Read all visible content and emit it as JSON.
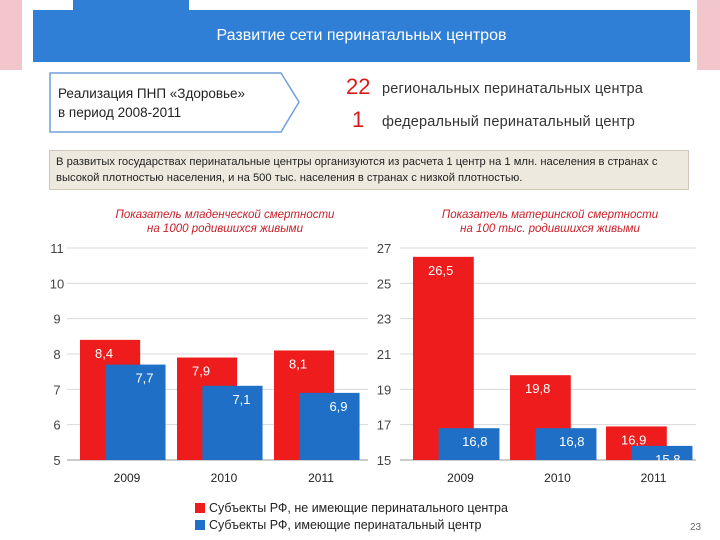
{
  "header": {
    "title": "Развитие сети перинатальных центров"
  },
  "callout": {
    "line1": "Реализация ПНП «Здоровье»",
    "line2": "в период 2008-2011"
  },
  "stats": [
    {
      "number": "22",
      "text": "региональных перинатальных центра"
    },
    {
      "number": "1",
      "text": "федеральный перинатальный центр"
    }
  ],
  "note": {
    "text": "В развитых государствах перинатальные центры организуются из расчета 1 центр на 1 млн. населения в странах с высокой плотностью населения, и на 500 тыс. населения в странах с низкой плотностью."
  },
  "colors": {
    "accent": "#2f7fd6",
    "red": "#ee1c1c",
    "blue": "#1f6fc6"
  },
  "legend": {
    "red_label": "Субъекты РФ, не имеющие перинатального центра",
    "blue_label": "Субъекты РФ, имеющие перинатальный центр"
  },
  "page_number": "23",
  "chart_data": [
    {
      "type": "bar",
      "title_line1": "Показатель младенческой смертности",
      "title_line2": "на 1000 родившихся живыми",
      "categories": [
        "2009",
        "2010",
        "2011"
      ],
      "series": [
        {
          "name": "Субъекты РФ, не имеющие перинатального центра",
          "values": [
            8.4,
            7.9,
            8.1
          ],
          "labels": [
            "8,4",
            "7,9",
            "8,1"
          ]
        },
        {
          "name": "Субъекты РФ, имеющие перинатальный центр",
          "values": [
            7.7,
            7.1,
            6.9
          ],
          "labels": [
            "7,7",
            "7,1",
            "6,9"
          ]
        }
      ],
      "y_ticks": [
        "11",
        "10",
        "9",
        "8",
        "7",
        "6",
        "5"
      ],
      "ylim": [
        5,
        11
      ]
    },
    {
      "type": "bar",
      "title_line1": "Показатель материнской смертности",
      "title_line2": "на 100 тыс. родившихся живыми",
      "categories": [
        "2009",
        "2010",
        "2011"
      ],
      "series": [
        {
          "name": "Субъекты РФ, не имеющие перинатального центра",
          "values": [
            26.5,
            19.8,
            16.9
          ],
          "labels": [
            "26,5",
            "19,8",
            "16,9"
          ]
        },
        {
          "name": "Субъекты РФ, имеющие перинатальный центр",
          "values": [
            16.8,
            16.8,
            15.8
          ],
          "labels": [
            "16,8",
            "16,8",
            "15,8"
          ]
        }
      ],
      "y_ticks": [
        "27",
        "25",
        "23",
        "21",
        "19",
        "17",
        "15"
      ],
      "ylim": [
        15,
        27
      ]
    }
  ]
}
